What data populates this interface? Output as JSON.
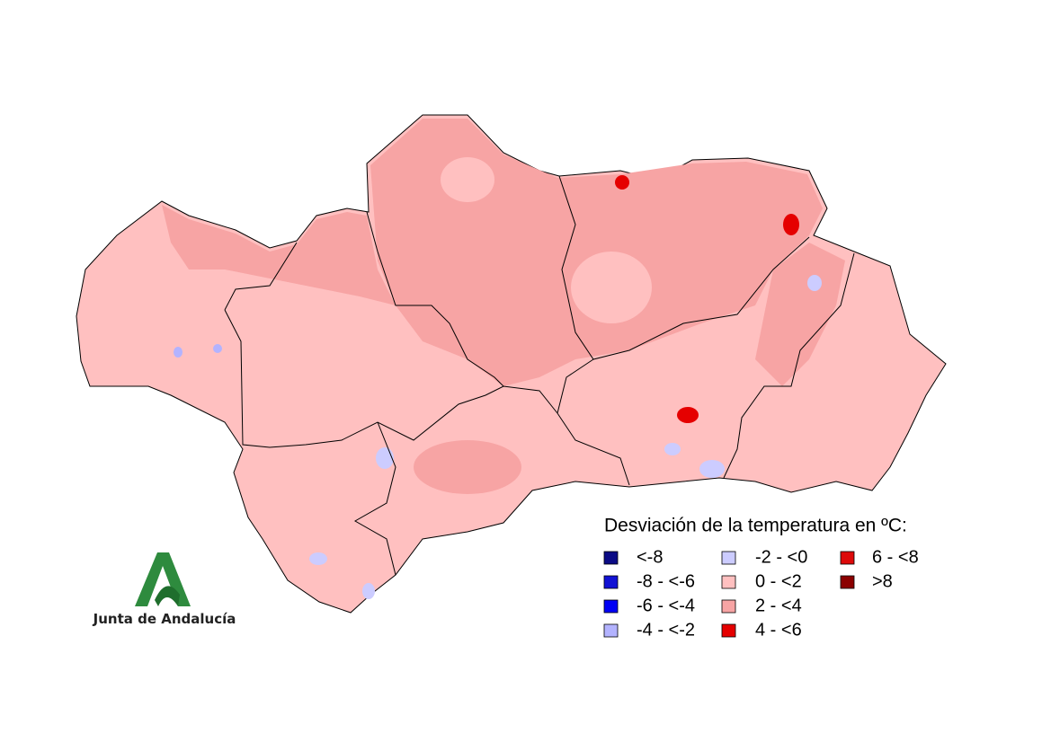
{
  "legend": {
    "title": "Desviación de la temperatura en ºC:",
    "items": [
      {
        "label": "<-8",
        "color": "#0b0b85"
      },
      {
        "label": "-8 - <-6",
        "color": "#1212d4"
      },
      {
        "label": "-6 - <-4",
        "color": "#0000f5"
      },
      {
        "label": "-4 - <-2",
        "color": "#b3b3ff"
      },
      {
        "label": "-2 - <0",
        "color": "#ccccff"
      },
      {
        "label": "0 - <2",
        "color": "#ffc0c0"
      },
      {
        "label": "2 - <4",
        "color": "#f7a4a4"
      },
      {
        "label": "4 - <6",
        "color": "#e50000"
      },
      {
        "label": "6 - <8",
        "color": "#dd0a0a"
      },
      {
        "label": ">8",
        "color": "#8b0000"
      }
    ]
  },
  "logo": {
    "text": "Junta de Andalucía"
  }
}
